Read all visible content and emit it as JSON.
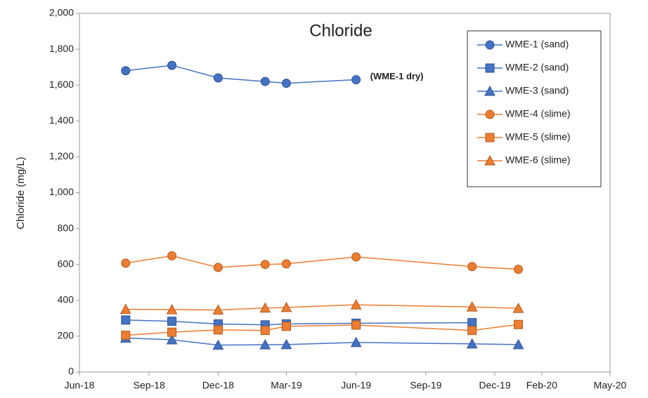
{
  "chart_data": {
    "type": "line",
    "title": "Chloride",
    "y_label": "Chloride (mg/L)",
    "annotation": "(WME-1 dry)",
    "x": [
      "2018-08",
      "2018-10",
      "2018-12",
      "2019-02",
      "2019-03",
      "2019-06",
      "2019-11",
      "2020-01"
    ],
    "xlim": [
      "2018-06",
      "2020-05"
    ],
    "xticks": [
      {
        "value": "2018-06",
        "label": "Jun-18"
      },
      {
        "value": "2018-09",
        "label": "Sep-18"
      },
      {
        "value": "2018-12",
        "label": "Dec-18"
      },
      {
        "value": "2019-03",
        "label": "Mar-19"
      },
      {
        "value": "2019-06",
        "label": "Jun-19"
      },
      {
        "value": "2019-09",
        "label": "Sep-19"
      },
      {
        "value": "2019-12",
        "label": "Dec-19"
      },
      {
        "value": "2020-02",
        "label": "Feb-20"
      },
      {
        "value": "2020-05",
        "label": "May-20"
      }
    ],
    "ylim": [
      0,
      2000
    ],
    "yticks": [
      0,
      200,
      400,
      600,
      800,
      {
        "value": 1000,
        "label": "1,000"
      },
      {
        "value": 1200,
        "label": "1,200"
      },
      {
        "value": 1400,
        "label": "1,400"
      },
      {
        "value": 1600,
        "label": "1,600"
      },
      {
        "value": 1800,
        "label": "1,800"
      },
      {
        "value": 2000,
        "label": "2,000"
      }
    ],
    "legend": "top-right",
    "series": [
      {
        "name": "WME-1 (sand)",
        "color": "#4472c4",
        "marker": "circle",
        "values": [
          1680,
          1710,
          1640,
          1620,
          1610,
          1630,
          null,
          null
        ]
      },
      {
        "name": "WME-2 (sand)",
        "color": "#4472c4",
        "marker": "square",
        "values": [
          290,
          283,
          268,
          263,
          268,
          272,
          275,
          null
        ]
      },
      {
        "name": "WME-3 (sand)",
        "color": "#4472c4",
        "marker": "triangle",
        "values": [
          190,
          180,
          150,
          152,
          153,
          165,
          157,
          153
        ]
      },
      {
        "name": "WME-4 (slime)",
        "color": "#ed7d31",
        "marker": "circle",
        "values": [
          607,
          648,
          583,
          600,
          603,
          642,
          588,
          573
        ]
      },
      {
        "name": "WME-5 (slime)",
        "color": "#ed7d31",
        "marker": "square",
        "values": [
          205,
          222,
          235,
          232,
          255,
          262,
          232,
          265
        ]
      },
      {
        "name": "WME-6 (slime)",
        "color": "#ed7d31",
        "marker": "triangle",
        "values": [
          350,
          348,
          346,
          357,
          360,
          375,
          363,
          355
        ]
      }
    ]
  }
}
